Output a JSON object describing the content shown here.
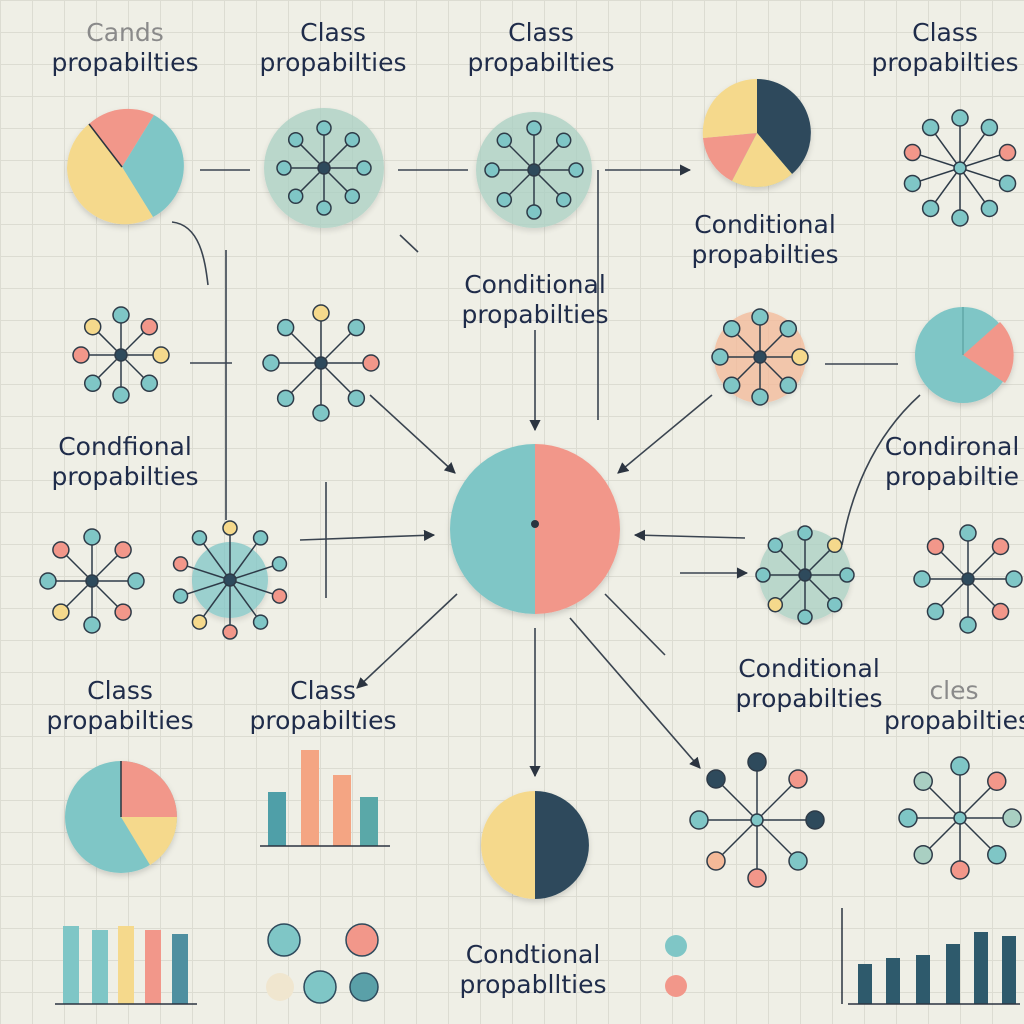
{
  "colors": {
    "teal": "#7fc6c6",
    "salmon": "#f2978a",
    "yellow": "#f5d98c",
    "navy": "#2e4a5c",
    "sage": "#a9cfc2",
    "peach": "#f4b998",
    "ink": "#1f2c4a",
    "grid": "#dcdcd2",
    "background": "#efefe6"
  },
  "labels": {
    "top_left": {
      "line1": "Cands",
      "line2": "propabilties"
    },
    "top_second": {
      "line1": "Class",
      "line2": "propabilties"
    },
    "top_third": {
      "line1": "Class",
      "line2": "propabilties"
    },
    "top_right": {
      "line1": "Class",
      "line2": "propabilties"
    },
    "center_top": {
      "line1": "Conditional",
      "line2": "propabilties"
    },
    "right_upper": {
      "line1": "Conditional",
      "line2": "propabilties"
    },
    "left_middle": {
      "line1": "Condfional",
      "line2": "propabilties"
    },
    "right_middle": {
      "line1": "Condironal",
      "line2": "propabiltie"
    },
    "right_lower": {
      "line1": "Conditional",
      "line2": "propabilties"
    },
    "bottom_left": {
      "line1": "Class",
      "line2": "propabilties"
    },
    "bottom_second": {
      "line1": "Class",
      "line2": "propabilties"
    },
    "bottom_right": {
      "line1": "cles",
      "line2": "propabilties"
    },
    "bottom_center": {
      "line1": "Condtional",
      "line2": "propabllties"
    }
  },
  "icons": [
    "pie-chart-icon",
    "network-node-icon",
    "bar-chart-icon",
    "legend-dot-icon",
    "arrow-icon"
  ]
}
